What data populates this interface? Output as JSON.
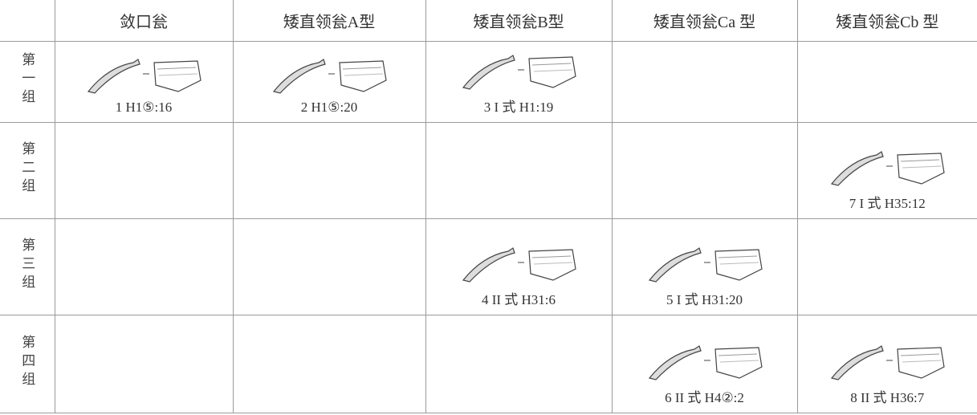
{
  "table": {
    "header": [
      null,
      "敛口瓮",
      "矮直领瓮A型",
      "矮直领瓮B型",
      "矮直领瓮Ca 型",
      "矮直领瓮Cb 型"
    ],
    "rows": [
      {
        "label": "第一组",
        "cells": [
          "1 H1⑤:16",
          "2 H1⑤:20",
          "3 I 式 H1:19",
          null,
          null
        ]
      },
      {
        "label": "第二组",
        "cells": [
          null,
          null,
          null,
          null,
          "7 I 式 H35:12"
        ]
      },
      {
        "label": "第三组",
        "cells": [
          null,
          null,
          "4 II 式 H31:6",
          "5 I 式 H31:20",
          null
        ]
      },
      {
        "label": "第四组",
        "cells": [
          null,
          null,
          null,
          "6 II 式 H4②:2",
          "8 II 式 H36:7"
        ]
      }
    ]
  }
}
